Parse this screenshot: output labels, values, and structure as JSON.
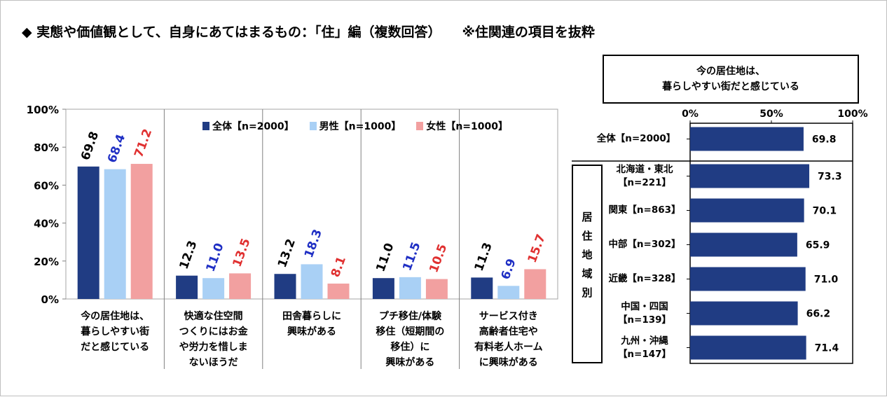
{
  "title": "◆ 実態や価値観として、自身にあてはまるもの：「住」編（複数回答）",
  "note": "※住関連の項目を抜粋",
  "colors": {
    "all": "#203c83",
    "male": "#a9d0f5",
    "female": "#f2a0a0",
    "male_label": "#1f2fc4",
    "female_label": "#e03030"
  },
  "chart_data": [
    {
      "type": "bar",
      "ylim": [
        0,
        100
      ],
      "yticks": [
        "0%",
        "20%",
        "40%",
        "60%",
        "80%",
        "100%"
      ],
      "categories": [
        "今の居住地は、\n暮らしやすい街\nだと感じている",
        "快適な住空間\nつくりにはお金\nや労力を惜しま\nないほうだ",
        "田舎暮らしに\n興味がある",
        "プチ移住/体験\n移住（短期間の\n移住）に\n興味がある",
        "サービス付き\n高齢者住宅や\n有料老人ホーム\nに興味がある"
      ],
      "series": [
        {
          "name": "全体【n=2000】",
          "values": [
            69.8,
            12.3,
            13.2,
            11.0,
            11.3
          ]
        },
        {
          "name": "男性【n=1000】",
          "values": [
            68.4,
            11.0,
            18.3,
            11.5,
            6.9
          ]
        },
        {
          "name": "女性【n=1000】",
          "values": [
            71.2,
            13.5,
            8.1,
            10.5,
            15.7
          ]
        }
      ],
      "legend": "top"
    },
    {
      "type": "bar",
      "orientation": "horizontal",
      "title": [
        "今の居住地は、",
        "暮らしやすい街だと感じている"
      ],
      "xlim": [
        0,
        100
      ],
      "xticks": [
        "0%",
        "50%",
        "100%"
      ],
      "group_label": "居住地域別",
      "categories": [
        [
          "全体【n=2000】"
        ],
        [
          "北海道・東北",
          "【n=221】"
        ],
        [
          "関東【n=863】"
        ],
        [
          "中部【n=302】"
        ],
        [
          "近畿【n=328】"
        ],
        [
          "中国・四国",
          "【n=139】"
        ],
        [
          "九州・沖縄",
          "【n=147】"
        ]
      ],
      "values": [
        69.8,
        73.3,
        70.1,
        65.9,
        71.0,
        66.2,
        71.4
      ],
      "value_labels": [
        "69.8",
        "73.3",
        "70.1",
        "65.9",
        "71.0",
        "66.2",
        "71.4"
      ]
    }
  ]
}
